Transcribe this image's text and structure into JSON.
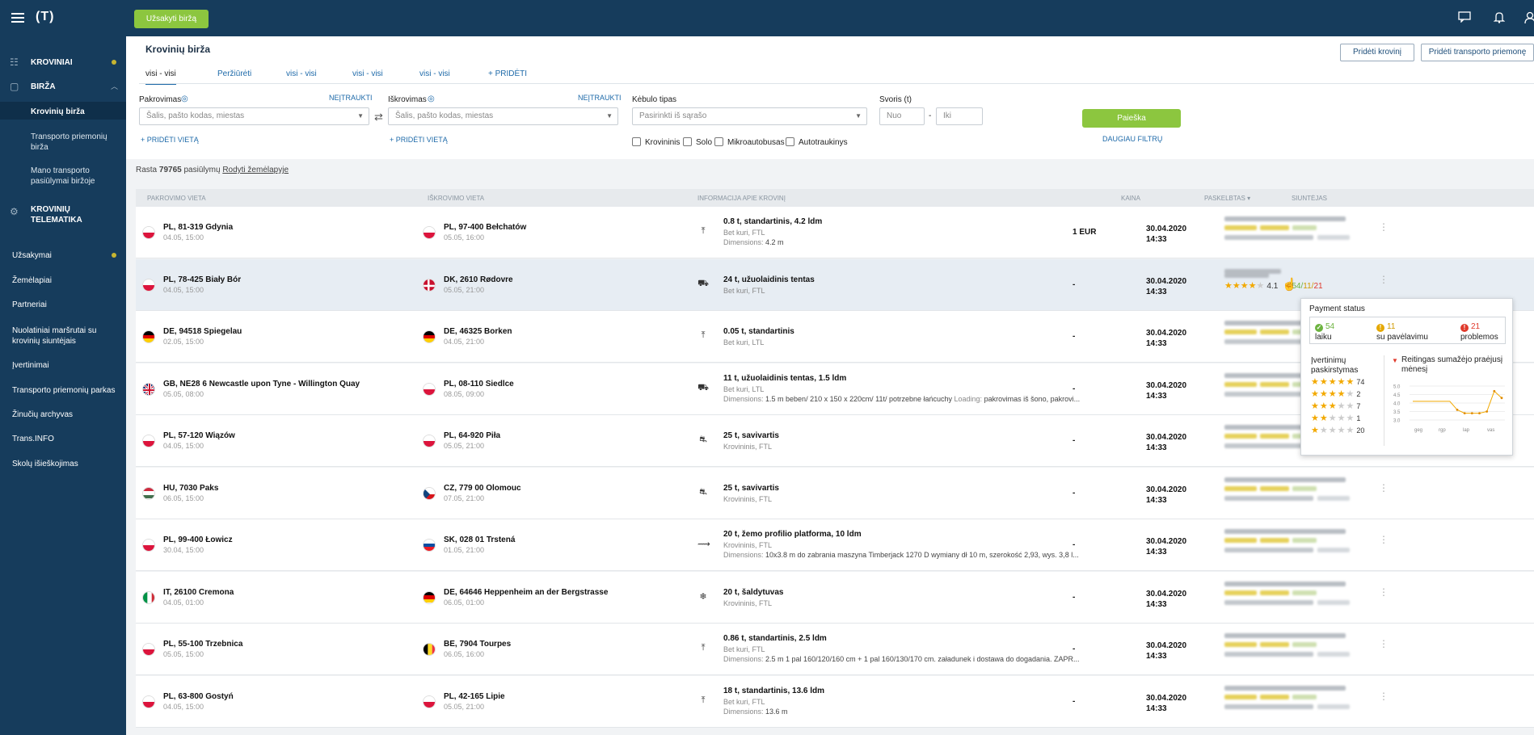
{
  "topbar": {
    "logo": "(T)",
    "order_button": "Užsakyti biržą",
    "icons": [
      "chat-icon",
      "bell-icon",
      "user-icon"
    ]
  },
  "sidebar": {
    "items": [
      {
        "label": "KROVINIAI",
        "icon": "cargo-icon",
        "dot": true
      },
      {
        "label": "BIRŽA",
        "icon": "box-icon",
        "chevron": "up"
      },
      {
        "label": "Krovinių birža"
      },
      {
        "label": "Transporto priemonių birža"
      },
      {
        "label": "Mano transporto pasiūlymai biržoje"
      },
      {
        "label": "KROVINIŲ TELEMATIKA",
        "icon": "telematics-icon"
      },
      {
        "label": "Užsakymai",
        "dot": true
      },
      {
        "label": "Žemėlapiai"
      },
      {
        "label": "Partneriai"
      },
      {
        "label": "Nuolatiniai maršrutai su krovinių siuntėjais"
      },
      {
        "label": "Įvertinimai"
      },
      {
        "label": "Transporto priemonių parkas"
      },
      {
        "label": "Žinučių archyvas"
      },
      {
        "label": "Trans.INFO"
      },
      {
        "label": "Skolų išieškojimas"
      }
    ]
  },
  "header": {
    "title": "Krovinių birža",
    "add_cargo": "Pridėti krovinį",
    "add_vehicle": "Pridėti transporto priemonę"
  },
  "tabs": [
    "visi - visi",
    "Peržiūrėti",
    "visi - visi",
    "visi - visi",
    "visi - visi",
    "+ PRIDĖTI"
  ],
  "filters": {
    "loading_label": "Pakrovimas",
    "loading_exclude": "NEĮTRAUKTI",
    "loading_placeholder": "Šalis, pašto kodas, miestas",
    "add_place": "+ PRIDĖTI VIETĄ",
    "unloading_label": "Iškrovimas",
    "unloading_exclude": "NEĮTRAUKTI",
    "unloading_placeholder": "Šalis, pašto kodas, miestas",
    "body_label": "Kėbulo tipas",
    "body_placeholder": "Pasirinkti iš sąrašo",
    "weight_label": "Svoris (t)",
    "weight_from": "Nuo",
    "weight_dash": "-",
    "weight_to": "Iki",
    "search": "Paieška",
    "more_filters": "DAUGIAU FILTRŲ",
    "checkboxes": [
      "Krovininis",
      "Solo",
      "Mikroautobusas",
      "Autotraukinys"
    ]
  },
  "results": {
    "prefix": "Rasta",
    "count": "79765",
    "suffix": "pasiūlymų",
    "map_link": "Rodyti žemėlapyje"
  },
  "columns": [
    "PAKROVIMO VIETA",
    "IŠKROVIMO VIETA",
    "INFORMACIJA APIE KROVINĮ",
    "KAINA",
    "PASKELBTAS",
    "SIUNTĖJAS"
  ],
  "rows": [
    {
      "from_flag": "pl",
      "from": "PL, 81-319 Gdynia",
      "from_date": "04.05, 15:00",
      "to_flag": "pl",
      "to": "PL, 97-400 Bełchatów",
      "to_date": "05.05, 16:00",
      "icon": "tarp-icon",
      "cargo": "0.8 t, standartinis, 4.2 ldm",
      "type": "Bet kuri, FTL",
      "dim_label": "Dimensions:",
      "dim": "4.2 m",
      "price": "1 EUR",
      "date": "30.04.2020",
      "time": "14:33"
    },
    {
      "from_flag": "pl",
      "from": "PL, 78-425 Biały Bór",
      "from_date": "04.05, 15:00",
      "to_flag": "dk",
      "to": "DK, 2610 Rødovre",
      "to_date": "05.05, 21:00",
      "icon": "curtain-icon",
      "cargo": "24 t, užuolaidinis tentas",
      "type": "Bet kuri, FTL",
      "dim_label": "",
      "dim": "",
      "price": "-",
      "date": "30.04.2020",
      "time": "14:33"
    },
    {
      "from_flag": "de",
      "from": "DE, 94518 Spiegelau",
      "from_date": "02.05, 15:00",
      "to_flag": "de",
      "to": "DE, 46325 Borken",
      "to_date": "04.05, 21:00",
      "icon": "tarp-icon",
      "cargo": "0.05 t, standartinis",
      "type": "Bet kuri, LTL",
      "dim_label": "",
      "dim": "",
      "price": "-",
      "date": "30.04.2020",
      "time": "14:33"
    },
    {
      "from_flag": "gb",
      "from": "GB, NE28 6 Newcastle upon Tyne - Willington Quay",
      "from_date": "05.05, 08:00",
      "to_flag": "pl",
      "to": "PL, 08-110 Siedlce",
      "to_date": "08.05, 09:00",
      "icon": "curtain-icon",
      "cargo": "11 t, užuolaidinis tentas, 1.5 ldm",
      "type": "Bet kuri, LTL",
      "dim_label": "Dimensions:",
      "dim": "1.5 m beben/ 210 x 150 x 220cm/ 11t/ potrzebne łańcuchy",
      "loading_label": "Loading:",
      "loading": "pakrovimas iš šono, pakrovi...",
      "price": "-",
      "date": "30.04.2020",
      "time": "14:33"
    },
    {
      "from_flag": "pl",
      "from": "PL, 57-120 Wiązów",
      "from_date": "04.05, 15:00",
      "to_flag": "pl",
      "to": "PL, 64-920 Piła",
      "to_date": "05.05, 21:00",
      "icon": "tipper-icon",
      "cargo": "25 t, savivartis",
      "type": "Krovininis, FTL",
      "dim_label": "",
      "dim": "",
      "price": "-",
      "date": "30.04.2020",
      "time": "14:33"
    },
    {
      "from_flag": "hu",
      "from": "HU, 7030 Paks",
      "from_date": "06.05, 15:00",
      "to_flag": "cz",
      "to": "CZ, 779 00 Olomouc",
      "to_date": "07.05, 21:00",
      "icon": "tipper-icon",
      "cargo": "25 t, savivartis",
      "type": "Krovininis, FTL",
      "dim_label": "",
      "dim": "",
      "price": "-",
      "date": "30.04.2020",
      "time": "14:33"
    },
    {
      "from_flag": "pl",
      "from": "PL, 99-400 Łowicz",
      "from_date": "30.04, 15:00",
      "to_flag": "sk",
      "to": "SK, 028 01 Trstená",
      "to_date": "01.05, 21:00",
      "icon": "platform-icon",
      "cargo": "20 t, žemo profilio platforma, 10 ldm",
      "type": "Krovininis, FTL",
      "dim_label": "Dimensions:",
      "dim": "10x3.8 m do zabrania maszyna Timberjack 1270 D wymiany dł 10 m, szerokość 2,93, wys. 3,8 l...",
      "price": "-",
      "date": "30.04.2020",
      "time": "14:33"
    },
    {
      "from_flag": "it",
      "from": "IT, 26100 Cremona",
      "from_date": "04.05, 01:00",
      "to_flag": "de",
      "to": "DE, 64646 Heppenheim an der Bergstrasse",
      "to_date": "06.05, 01:00",
      "icon": "snowflake-icon",
      "cargo": "20 t, šaldytuvas",
      "type": "Krovininis, FTL",
      "dim_label": "",
      "dim": "",
      "price": "-",
      "date": "30.04.2020",
      "time": "14:33"
    },
    {
      "from_flag": "pl",
      "from": "PL, 55-100 Trzebnica",
      "from_date": "05.05, 15:00",
      "to_flag": "be",
      "to": "BE, 7904 Tourpes",
      "to_date": "06.05, 16:00",
      "icon": "tarp-icon",
      "cargo": "0.86 t, standartinis, 2.5 ldm",
      "type": "Bet kuri, FTL",
      "dim_label": "Dimensions:",
      "dim": "2.5 m 1 pal 160/120/160 cm + 1 pal 160/130/170 cm. załadunek i dostawa do dogadania. ZAPR...",
      "price": "-",
      "date": "30.04.2020",
      "time": "14:33"
    },
    {
      "from_flag": "pl",
      "from": "PL, 63-800 Gostyń",
      "from_date": "04.05, 15:00",
      "to_flag": "pl",
      "to": "PL, 42-165 Lipie",
      "to_date": "05.05, 21:00",
      "icon": "tarp-icon",
      "cargo": "18 t, standartinis, 13.6 ldm",
      "type": "Bet kuri, FTL",
      "dim_label": "Dimensions:",
      "dim": "13.6 m",
      "price": "-",
      "date": "30.04.2020",
      "time": "14:33"
    }
  ],
  "hover_rating": {
    "score": "4.1",
    "ontime": "54",
    "sep1": "/",
    "delayed": "11",
    "sep2": "/",
    "problems": "21"
  },
  "popup": {
    "title": "Payment status",
    "ontime_count": "54",
    "ontime_label": "laiku",
    "delayed_count": "11",
    "delayed_label": "su pavėlavimu",
    "problems_count": "21",
    "problems_label": "problemos",
    "dist_title": "Įvertinimų paskirstymas",
    "distribution": [
      {
        "stars": 5,
        "count": "74"
      },
      {
        "stars": 4,
        "count": "2"
      },
      {
        "stars": 3,
        "count": "7"
      },
      {
        "stars": 2,
        "count": "1"
      },
      {
        "stars": 1,
        "count": "20"
      }
    ],
    "trend_title": "Reitingas sumažėjo praėjusį mėnesį",
    "trend_y_ticks": [
      "5.0",
      "4.5",
      "4.0",
      "3.5",
      "3.0"
    ],
    "trend_x_ticks": [
      "geg",
      "rgp",
      "lap",
      "vas"
    ],
    "trend_values": [
      4.1,
      4.1,
      4.1,
      4.1,
      4.1,
      4.1,
      3.6,
      3.4,
      3.4,
      3.4,
      3.5,
      4.7,
      4.3
    ]
  },
  "colors": {
    "navy": "#163c5c",
    "green": "#8cc63f",
    "blue": "#1e6aa9",
    "star": "#f2a900"
  }
}
